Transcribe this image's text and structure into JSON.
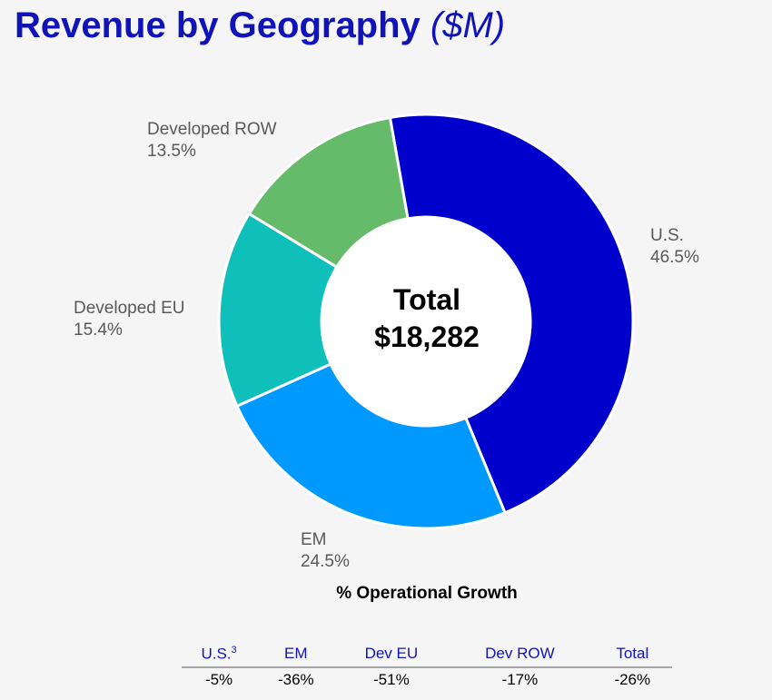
{
  "title": {
    "main": "Revenue by Geography",
    "unit": "($M)"
  },
  "center": {
    "label": "Total",
    "value": "$18,282"
  },
  "chart_data": {
    "type": "pie",
    "style": "donut",
    "title": "Revenue by Geography ($M)",
    "total": 18282,
    "slices": [
      {
        "name": "U.S.",
        "pct_label": "46.5%",
        "value": 46.5,
        "color": "#0000cc"
      },
      {
        "name": "EM",
        "pct_label": "24.5%",
        "value": 24.5,
        "color": "#0099ff"
      },
      {
        "name": "Developed EU",
        "pct_label": "15.4%",
        "value": 15.4,
        "color": "#0fbfb9"
      },
      {
        "name": "Developed ROW",
        "pct_label": "13.5%",
        "value": 13.5,
        "color": "#66bb6a"
      }
    ]
  },
  "growth": {
    "title": "% Operational Growth",
    "headers": [
      {
        "label": "U.S.",
        "sup": "3"
      },
      {
        "label": "EM",
        "sup": ""
      },
      {
        "label": "Dev EU",
        "sup": ""
      },
      {
        "label": "Dev ROW",
        "sup": ""
      },
      {
        "label": "Total",
        "sup": ""
      }
    ],
    "values": [
      "-5%",
      "-36%",
      "-51%",
      "-17%",
      "-26%"
    ]
  }
}
